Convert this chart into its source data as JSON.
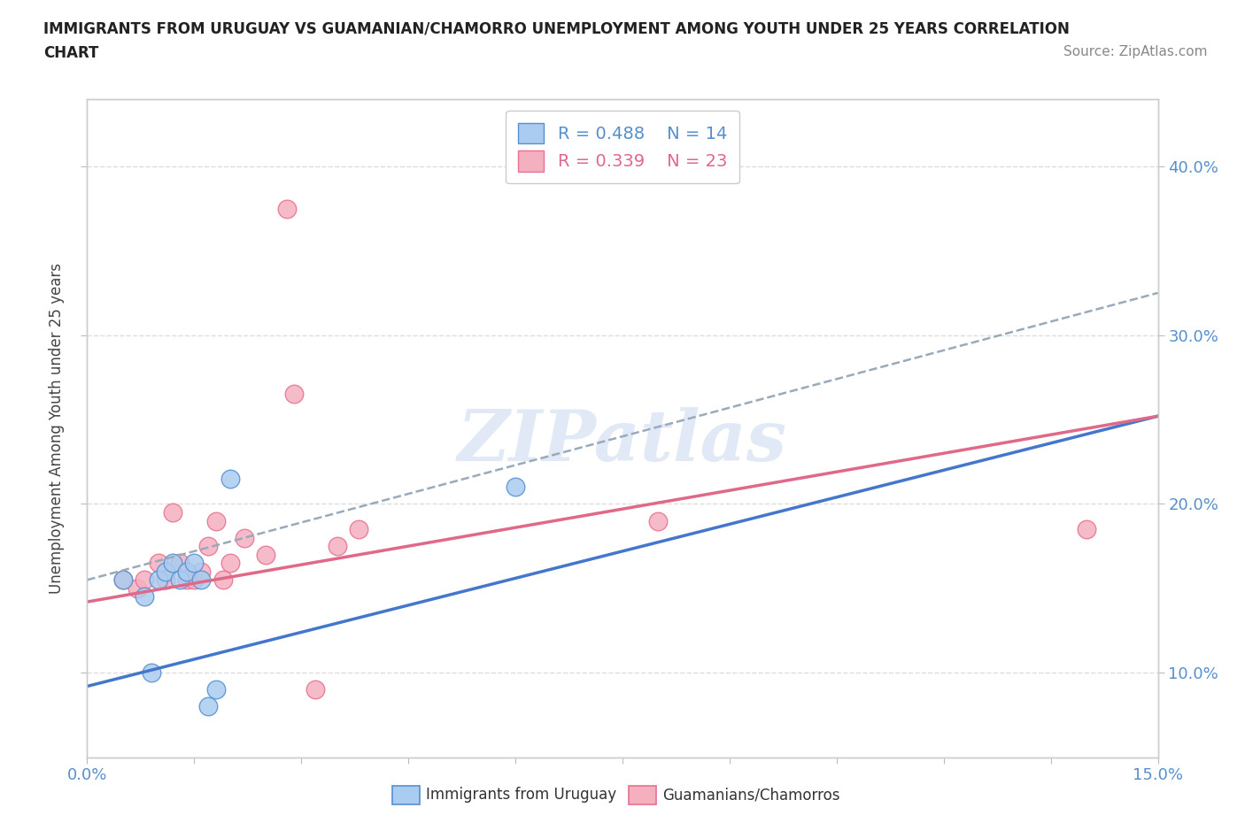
{
  "title_line1": "IMMIGRANTS FROM URUGUAY VS GUAMANIAN/CHAMORRO UNEMPLOYMENT AMONG YOUTH UNDER 25 YEARS CORRELATION",
  "title_line2": "CHART",
  "source": "Source: ZipAtlas.com",
  "ylabel": "Unemployment Among Youth under 25 years",
  "xlim": [
    0.0,
    0.15
  ],
  "ylim": [
    0.05,
    0.44
  ],
  "yticks": [
    0.1,
    0.2,
    0.3,
    0.4
  ],
  "ytick_labels": [
    "10.0%",
    "20.0%",
    "30.0%",
    "40.0%"
  ],
  "xticks": [
    0.0,
    0.015,
    0.03,
    0.045,
    0.06,
    0.075,
    0.09,
    0.105,
    0.12,
    0.135,
    0.15
  ],
  "xtick_labels": [
    "0.0%",
    "",
    "",
    "",
    "",
    "",
    "",
    "",
    "",
    "",
    "15.0%"
  ],
  "uruguay_x": [
    0.005,
    0.008,
    0.009,
    0.01,
    0.011,
    0.012,
    0.013,
    0.014,
    0.015,
    0.016,
    0.017,
    0.018,
    0.02,
    0.06
  ],
  "uruguay_y": [
    0.155,
    0.145,
    0.1,
    0.155,
    0.16,
    0.165,
    0.155,
    0.16,
    0.165,
    0.155,
    0.08,
    0.09,
    0.215,
    0.21
  ],
  "guam_x": [
    0.005,
    0.007,
    0.008,
    0.01,
    0.011,
    0.012,
    0.013,
    0.014,
    0.015,
    0.016,
    0.017,
    0.018,
    0.019,
    0.02,
    0.022,
    0.025,
    0.028,
    0.029,
    0.032,
    0.035,
    0.038,
    0.08,
    0.14
  ],
  "guam_y": [
    0.155,
    0.15,
    0.155,
    0.165,
    0.155,
    0.195,
    0.165,
    0.155,
    0.155,
    0.16,
    0.175,
    0.19,
    0.155,
    0.165,
    0.18,
    0.17,
    0.375,
    0.265,
    0.09,
    0.175,
    0.185,
    0.19,
    0.185
  ],
  "uruguay_R": 0.488,
  "uruguay_N": 14,
  "guam_R": 0.339,
  "guam_N": 23,
  "uruguay_color": "#aaccf0",
  "guam_color": "#f5b0c0",
  "uruguay_line_color": "#5590d0",
  "guam_line_color": "#e87090",
  "uruguay_trend_color": "#4477cc",
  "guam_trend_color": "#e06888",
  "dashed_trend_color": "#99aabb",
  "watermark": "ZIPatlas",
  "background_color": "#ffffff",
  "grid_color": "#dddddd"
}
